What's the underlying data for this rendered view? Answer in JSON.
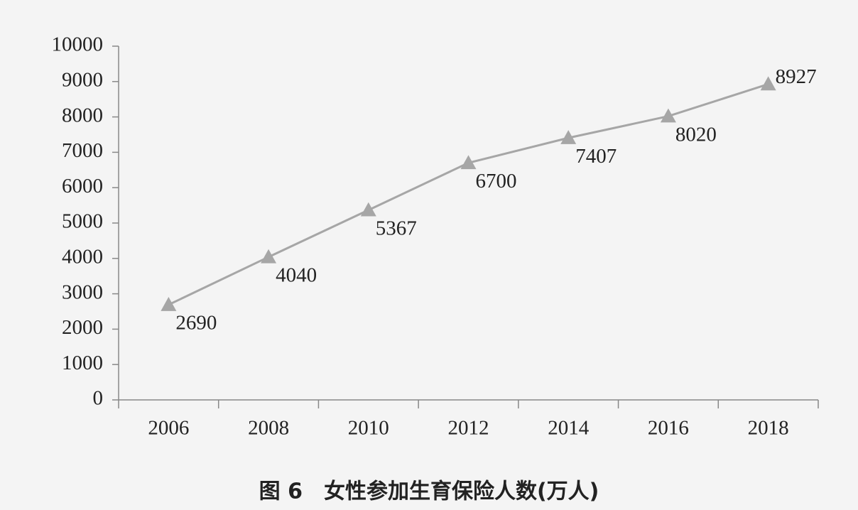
{
  "chart_data": {
    "type": "line",
    "title": "图 6　女性参加生育保险人数(万人)",
    "categories": [
      "2006",
      "2008",
      "2010",
      "2012",
      "2014",
      "2016",
      "2018"
    ],
    "values": [
      2690,
      4040,
      5367,
      6700,
      7407,
      8020,
      8927
    ],
    "color": "#a6a6a6",
    "ylim": [
      0,
      10000
    ],
    "yticks": [
      0,
      1000,
      2000,
      3000,
      4000,
      5000,
      6000,
      7000,
      8000,
      9000,
      10000
    ],
    "grid": false
  }
}
